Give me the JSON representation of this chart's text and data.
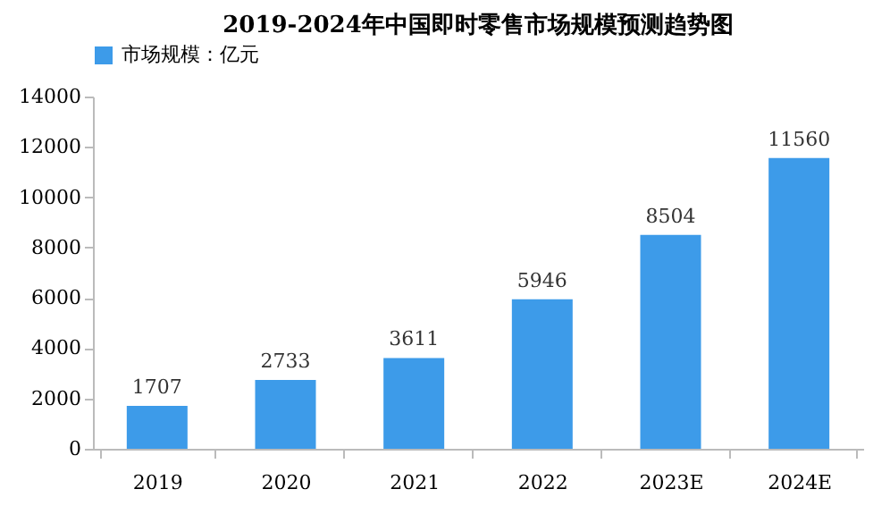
{
  "chart_data": {
    "type": "bar",
    "title": "2019-2024年中国即时零售市场规模预测趋势图",
    "categories": [
      "2019",
      "2020",
      "2021",
      "2022",
      "2023E",
      "2024E"
    ],
    "series": [
      {
        "name": "市场规模：亿元",
        "color": "#3d9be9",
        "values": [
          1707,
          2733,
          3611,
          5946,
          8504,
          11560
        ]
      }
    ],
    "ylim": [
      0,
      14000
    ],
    "yticks": [
      0,
      2000,
      4000,
      6000,
      8000,
      10000,
      12000,
      14000
    ],
    "data_labels": true,
    "legend": "top",
    "grid": false
  }
}
